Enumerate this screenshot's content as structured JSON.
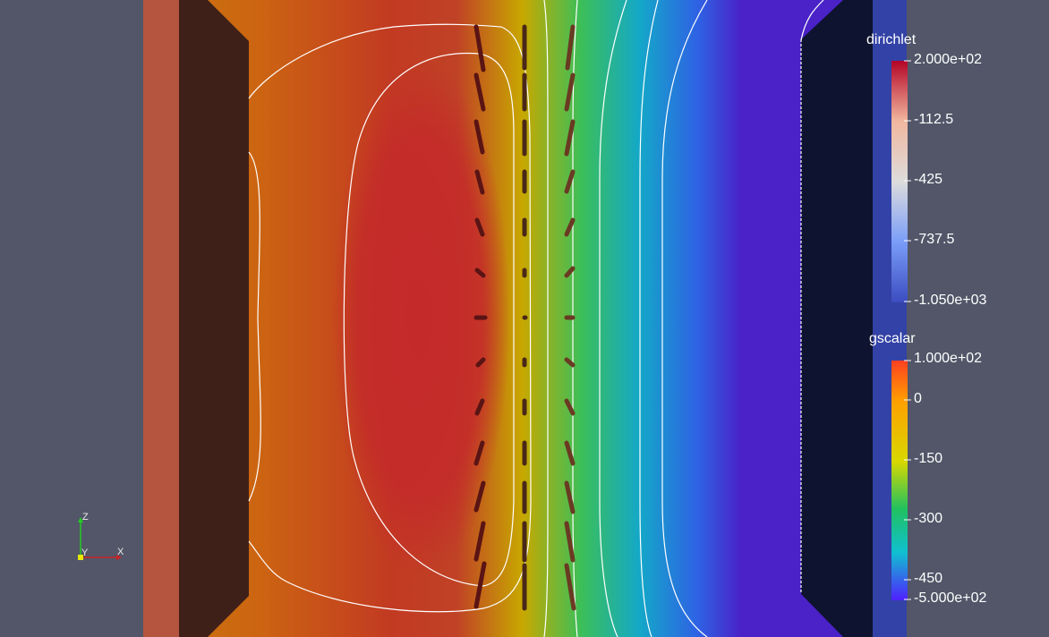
{
  "scene": {
    "background": "#525668",
    "left_slab_color": "#b55540",
    "left_block_color": "#3e2018",
    "right_block_color": "#0e1330",
    "right_slab_color": "#3342a6"
  },
  "legends": {
    "dirichlet": {
      "title": "dirichlet",
      "labels": [
        "2.000e+02",
        "-112.5",
        "-425",
        "-737.5",
        "-1.050e+03"
      ],
      "colors": [
        "#b40426",
        "#f1b79e",
        "#dddcdc",
        "#7a9df8",
        "#3b4cc0"
      ]
    },
    "gscalar": {
      "title": "gscalar",
      "labels": [
        "1.000e+02",
        "0",
        "-150",
        "-300",
        "-450",
        "-5.000e+02"
      ],
      "colors": [
        "#ff4020",
        "#ffa000",
        "#d8d800",
        "#20c060",
        "#10c0d0",
        "#5020ff"
      ]
    }
  },
  "axes": {
    "z_label": "Z",
    "x_label": "X",
    "y_label": "Y"
  }
}
